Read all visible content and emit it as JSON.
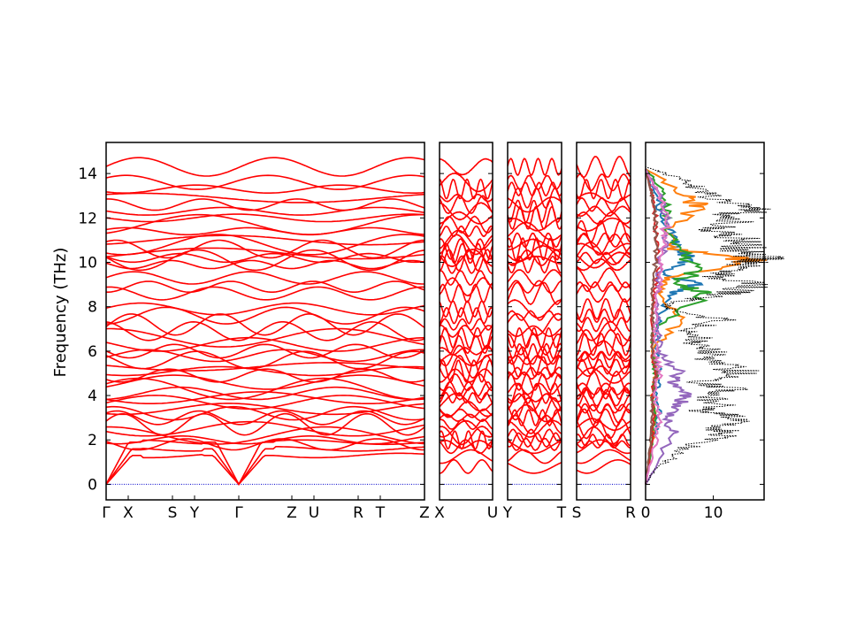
{
  "chart_data": {
    "type": "line",
    "ylabel": "Frequency (THz)",
    "ylim": [
      -0.7,
      15.4
    ],
    "yticks": [
      0,
      2,
      4,
      6,
      8,
      10,
      12,
      14
    ],
    "colors": {
      "bands": "#ff0000",
      "zero_line": "#0000cc",
      "total_dos": "#000000"
    },
    "band_panels": [
      {
        "labels": [
          "Γ",
          "X",
          "S",
          "Y",
          "Γ",
          "Z",
          "U",
          "R",
          "T",
          "Z"
        ],
        "segments": [
          0.5,
          1.0,
          0.5,
          1.0,
          1.2,
          0.5,
          1.0,
          0.5,
          1.0
        ]
      },
      {
        "labels": [
          "X",
          "U"
        ],
        "segments": [
          1.0
        ]
      },
      {
        "labels": [
          "Y",
          "T"
        ],
        "segments": [
          1.0
        ]
      },
      {
        "labels": [
          "S",
          "R"
        ],
        "segments": [
          1.0
        ]
      }
    ],
    "band_count_approx": 60,
    "bands_gamma_levels": [
      0,
      0,
      0,
      1.8,
      2.0,
      2.2,
      2.5,
      2.7,
      3.0,
      3.2,
      3.4,
      3.7,
      3.9,
      4.1,
      4.3,
      4.6,
      4.9,
      5.1,
      5.3,
      5.6,
      5.8,
      6.0,
      6.3,
      6.6,
      6.9,
      7.2,
      7.6,
      7.9,
      8.6,
      8.9,
      9.3,
      9.9,
      10.1,
      10.2,
      10.4,
      10.6,
      10.8,
      11.0,
      11.4,
      11.7,
      12.0,
      12.3,
      12.6,
      12.9,
      13.3,
      13.6,
      14.3
    ],
    "dos": {
      "xticks": [
        0,
        10
      ],
      "xlim": [
        0,
        17.5
      ],
      "total": {
        "freq": [
          0,
          0.5,
          1.0,
          1.5,
          2.0,
          2.3,
          2.6,
          3.0,
          3.3,
          3.6,
          4.0,
          4.3,
          4.6,
          5.0,
          5.3,
          5.6,
          6.0,
          6.3,
          6.6,
          7.0,
          7.4,
          7.8,
          8.1,
          8.4,
          8.7,
          9.0,
          9.3,
          9.6,
          9.9,
          10.1,
          10.3,
          10.6,
          10.9,
          11.2,
          11.5,
          11.8,
          12.1,
          12.4,
          12.7,
          13.0,
          13.3,
          13.6,
          14.0,
          14.3
        ],
        "dos": [
          0,
          1,
          3,
          5,
          9,
          12,
          10,
          14,
          8,
          11,
          9,
          13,
          8,
          15,
          12,
          9,
          10,
          7,
          8,
          6,
          12,
          4,
          3,
          8,
          14,
          16,
          10,
          12,
          15,
          17,
          16,
          14,
          16,
          12,
          10,
          13,
          12,
          17,
          11,
          9,
          8,
          6,
          3,
          0
        ]
      },
      "partials": [
        {
          "color": "#1f77b4",
          "freq": [
            0,
            2.0,
            3.0,
            4.0,
            5.0,
            6.0,
            7.5,
            8.6,
            9.0,
            9.5,
            10.2,
            10.5,
            11.2,
            12.0,
            12.8,
            14.0
          ],
          "dos": [
            0,
            1,
            2,
            1.5,
            2,
            1.5,
            2,
            4,
            8,
            3,
            7,
            5,
            4,
            2,
            2,
            0
          ]
        },
        {
          "color": "#ff7f0e",
          "freq": [
            0,
            2.0,
            3.0,
            4.0,
            5.0,
            6.0,
            7.4,
            8.6,
            9.3,
            10.1,
            10.6,
            11.5,
            12.5,
            13.0,
            14.2
          ],
          "dos": [
            0,
            1,
            1.5,
            1,
            1.5,
            1,
            5,
            2,
            3,
            15,
            4,
            3,
            8,
            6,
            0
          ]
        },
        {
          "color": "#2ca02c",
          "freq": [
            0,
            2.0,
            3.0,
            4.0,
            5.0,
            6.0,
            7.0,
            8.6,
            9.0,
            9.5,
            10.3,
            11.5,
            12.5,
            13.5,
            14.2
          ],
          "dos": [
            0,
            1,
            1.2,
            1,
            1.5,
            1,
            1.2,
            10,
            4,
            7,
            6,
            3,
            3,
            2,
            0
          ]
        },
        {
          "color": "#d62728",
          "freq": [
            0,
            2.0,
            3.0,
            4.0,
            5.0,
            6.0,
            8.0,
            9.0,
            10.0,
            11.0,
            12.0,
            13.0,
            14.2
          ],
          "dos": [
            0,
            1,
            1.2,
            1,
            1.5,
            1,
            1,
            1.5,
            2,
            1.5,
            1.5,
            1,
            0
          ]
        },
        {
          "color": "#9467bd",
          "freq": [
            0,
            2.3,
            3.0,
            3.6,
            4.0,
            4.6,
            5.0,
            6.0,
            7.0,
            8.0,
            9.0,
            10.0,
            11.0,
            12.0,
            13.0,
            14.2
          ],
          "dos": [
            0,
            4,
            3,
            5,
            6,
            4,
            5,
            2,
            2,
            1.5,
            2,
            2,
            3,
            3,
            2,
            0
          ]
        },
        {
          "color": "#8c564b",
          "freq": [
            0,
            2.0,
            3.0,
            4.0,
            5.0,
            6.0,
            7.0,
            8.0,
            9.0,
            10.0,
            11.0,
            12.0,
            13.0,
            14.2
          ],
          "dos": [
            0,
            0.8,
            1,
            1,
            1.5,
            1,
            1,
            1,
            1,
            1.5,
            1.5,
            1.5,
            1,
            0
          ]
        },
        {
          "color": "#e377c2",
          "freq": [
            0,
            2.0,
            3.0,
            4.0,
            5.0,
            6.0,
            7.0,
            8.0,
            9.0,
            10.0,
            11.0,
            12.0,
            13.0,
            14.2
          ],
          "dos": [
            0,
            1.5,
            2,
            1.5,
            2,
            1.5,
            1.5,
            1.5,
            2,
            2,
            3,
            3,
            2,
            0
          ]
        }
      ]
    }
  }
}
